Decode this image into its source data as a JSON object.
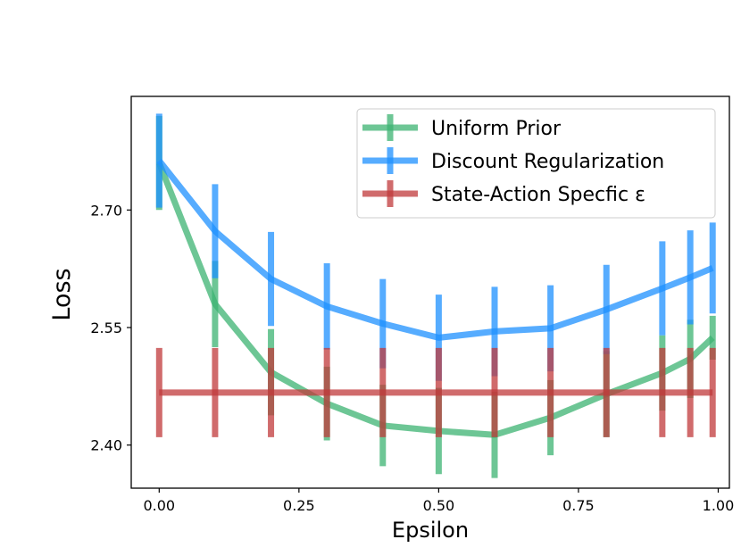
{
  "chart_data": {
    "type": "line",
    "title": "",
    "xlabel": "Epsilon",
    "ylabel": "Loss",
    "xlim": [
      -0.05,
      1.02
    ],
    "ylim": [
      2.345,
      2.845
    ],
    "xticks": [
      0.0,
      0.25,
      0.5,
      0.75,
      1.0
    ],
    "xtick_labels": [
      "0.00",
      "0.25",
      "0.50",
      "0.75",
      "1.00"
    ],
    "yticks": [
      2.4,
      2.55,
      2.7
    ],
    "ytick_labels": [
      "2.40",
      "2.55",
      "2.70"
    ],
    "grid": false,
    "legend_position": "top-right",
    "x": [
      0.0,
      0.1,
      0.2,
      0.3,
      0.4,
      0.5,
      0.6,
      0.7,
      0.8,
      0.9,
      0.95,
      0.99
    ],
    "series": [
      {
        "name": "Uniform Prior",
        "color": "#3cb371",
        "values": [
          2.76,
          2.58,
          2.493,
          2.453,
          2.425,
          2.418,
          2.413,
          2.435,
          2.465,
          2.492,
          2.51,
          2.537
        ],
        "error": [
          0.06,
          0.055,
          0.055,
          0.047,
          0.052,
          0.055,
          0.055,
          0.048,
          0.055,
          0.048,
          0.05,
          0.028
        ]
      },
      {
        "name": "Discount Regularization",
        "color": "#1e90ff",
        "values": [
          2.763,
          2.673,
          2.612,
          2.577,
          2.555,
          2.537,
          2.545,
          2.549,
          2.573,
          2.6,
          2.614,
          2.626
        ],
        "error": [
          0.06,
          0.06,
          0.06,
          0.055,
          0.057,
          0.055,
          0.057,
          0.055,
          0.057,
          0.06,
          0.06,
          0.058
        ]
      },
      {
        "name": "State-Action Specfic ε",
        "color": "#c0393b",
        "values": [
          2.467,
          2.467,
          2.467,
          2.467,
          2.467,
          2.467,
          2.467,
          2.467,
          2.467,
          2.467,
          2.467,
          2.467
        ],
        "error": [
          0.057,
          0.057,
          0.057,
          0.057,
          0.057,
          0.057,
          0.057,
          0.057,
          0.057,
          0.057,
          0.057,
          0.057
        ]
      }
    ]
  }
}
